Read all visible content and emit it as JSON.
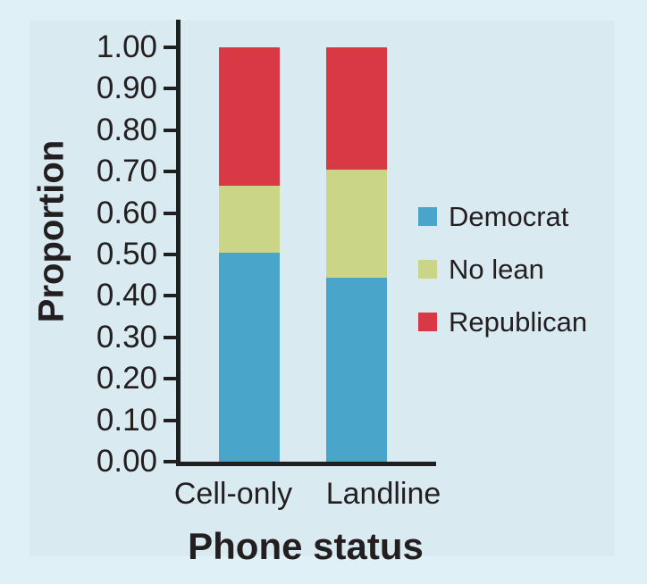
{
  "colors": {
    "outer_background": "#dff0f6",
    "panel_background": "#d9eaf1",
    "axis": "#1f1f1f",
    "text": "#231f20"
  },
  "chart_data": {
    "type": "bar",
    "stacked": true,
    "title": "",
    "xlabel": "Phone status",
    "ylabel": "Proportion",
    "categories": [
      "Cell-only",
      "Landline"
    ],
    "series": [
      {
        "name": "Democrat",
        "color": "#49a5c9",
        "values": [
          0.505,
          0.445
        ]
      },
      {
        "name": "No lean",
        "color": "#cbd588",
        "values": [
          0.16,
          0.26
        ]
      },
      {
        "name": "Republican",
        "color": "#d93845",
        "values": [
          0.335,
          0.295
        ]
      }
    ],
    "ylim": [
      0,
      1
    ],
    "yticks": [
      "0.00",
      "0.10",
      "0.20",
      "0.30",
      "0.40",
      "0.50",
      "0.60",
      "0.70",
      "0.80",
      "0.90",
      "1.00"
    ],
    "grid": false,
    "legend_position": "right"
  }
}
